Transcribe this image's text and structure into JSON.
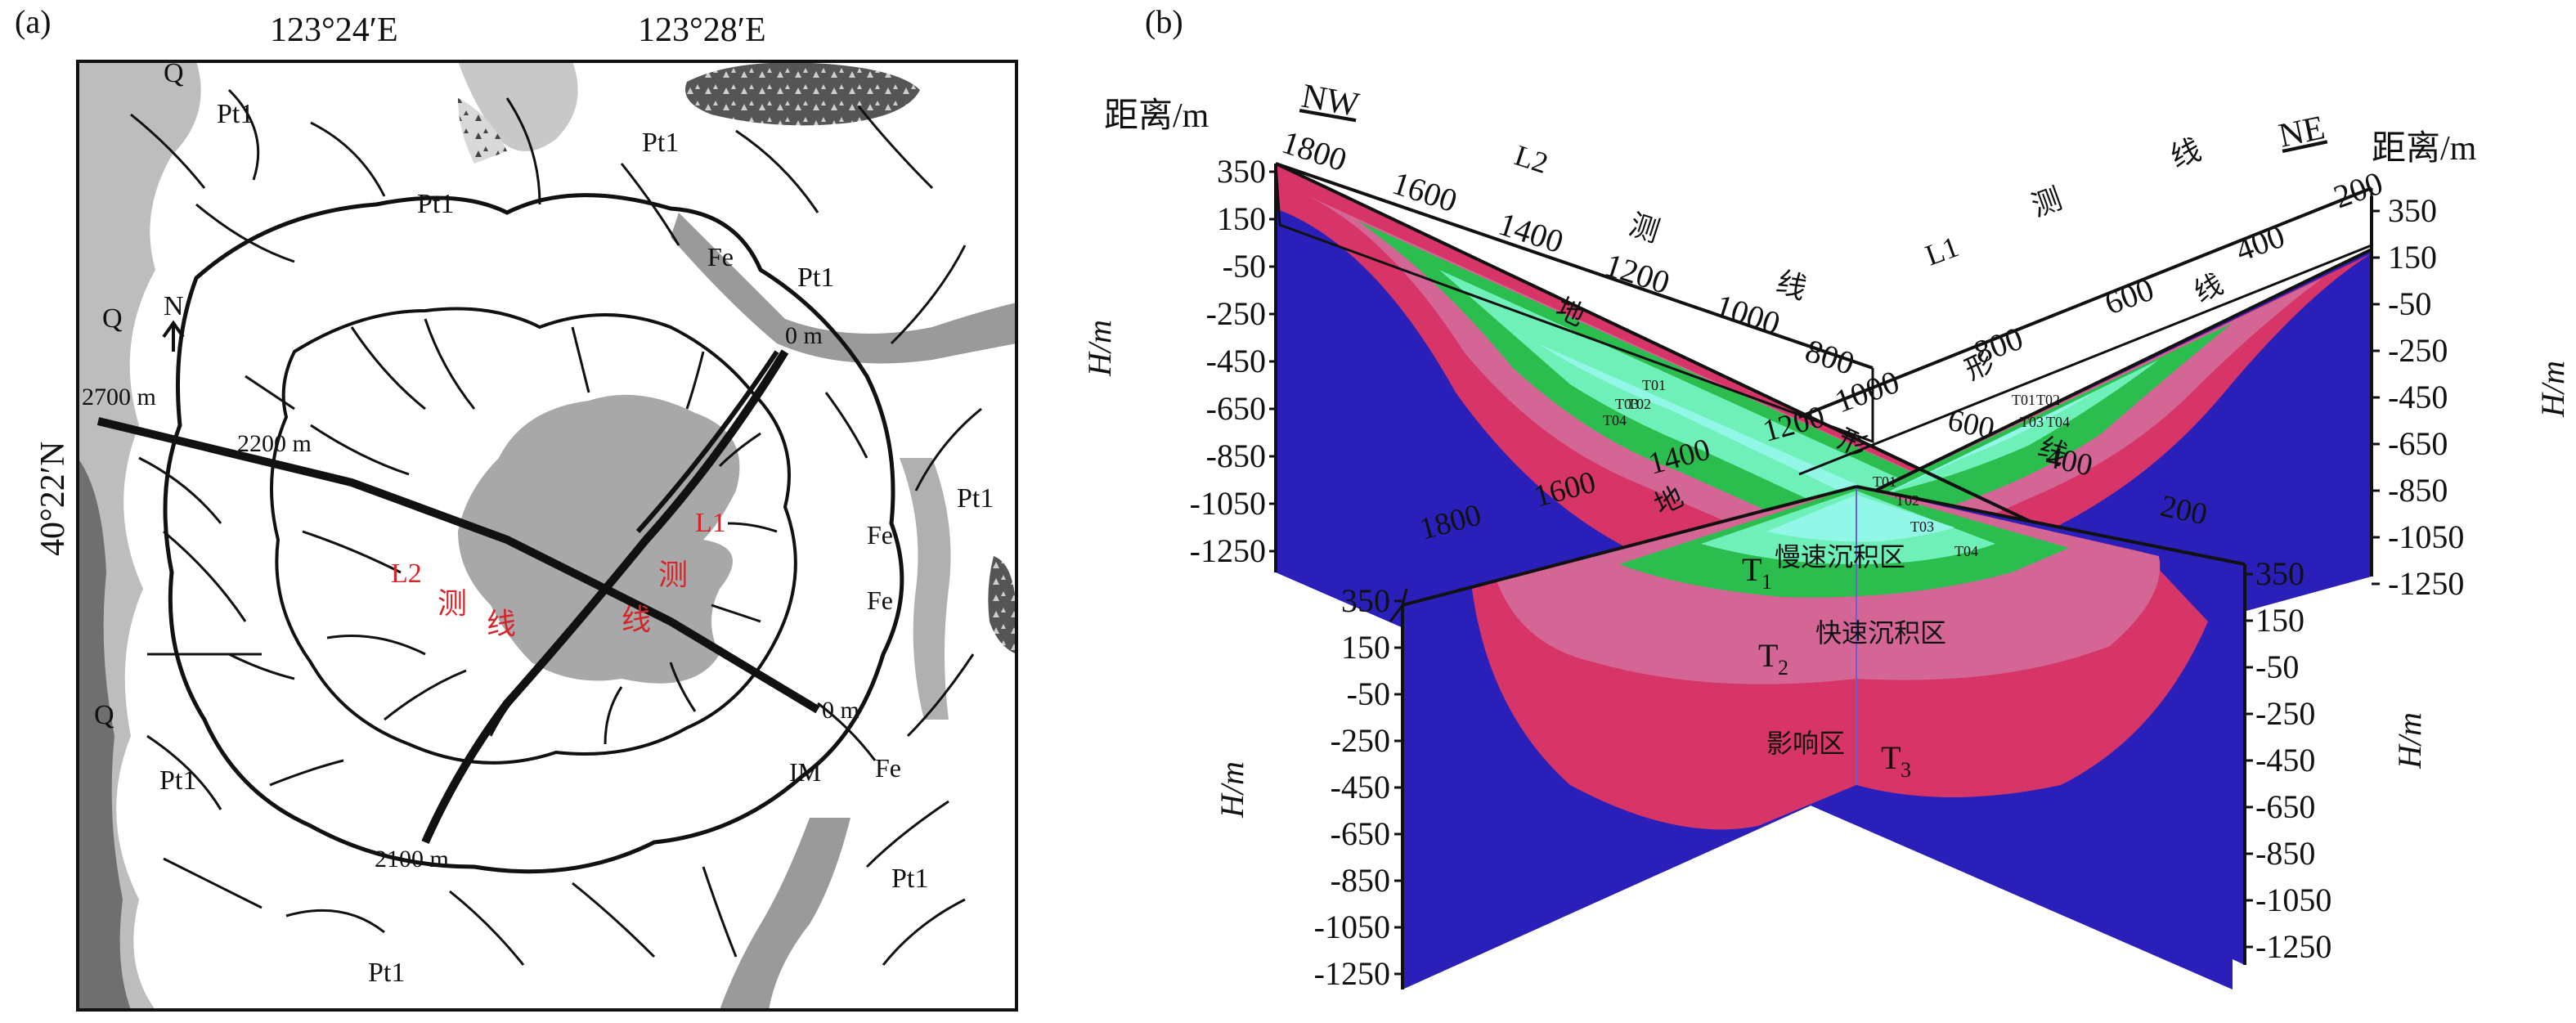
{
  "panel_a": {
    "label": "(a)",
    "lon_left": "123°24′E",
    "lon_right": "123°28′E",
    "lat": "40°22′N",
    "north": "N",
    "units": {
      "q_top": "Q",
      "q_left": "Q",
      "q_bottom_left": "Q",
      "pt1_top_left": "Pt1",
      "pt1_top_mid": "Pt1",
      "pt1_top_right": "Pt1",
      "pt1_upper_right": "Pt1",
      "pt1_right": "Pt1",
      "pt1_left": "Pt1",
      "pt1_bottom_right": "Pt1",
      "pt1_bottom": "Pt1",
      "fe_top": "Fe",
      "fe_right1": "Fe",
      "fe_right2": "Fe",
      "fe_bottom": "Fe",
      "im": "IM"
    },
    "distances": {
      "l1_start": "0 m",
      "l2_start": "2700 m",
      "l2_mid": "2200 m",
      "l2_end": "0 m",
      "l1_end": "2100 m"
    },
    "survey_lines": {
      "l1_name": "L1",
      "l1_char1": "测",
      "l1_char2": "线",
      "l2_name": "L2",
      "l2_char1": "测",
      "l2_char2": "线"
    }
  },
  "panel_b": {
    "label": "(b)",
    "distance_title_left": "距离/m",
    "distance_title_right": "距离/m",
    "dir_nw": "NW",
    "dir_ne": "NE",
    "h_unit": "H/m",
    "l2_top_ticks": [
      "1800",
      "1600",
      "1400",
      "1200",
      "1000",
      "800"
    ],
    "l1_top_ticks": [
      "1000",
      "800",
      "600",
      "400",
      "200"
    ],
    "l2_top_name": "L2",
    "l1_top_name": "L1",
    "ce_char": "测",
    "xian_char": "线",
    "di_char": "地",
    "xing_char": "形",
    "l2_lower_ticks": [
      "1800",
      "1600",
      "1400",
      "1200"
    ],
    "l1_lower_ticks": [
      "600",
      "400",
      "200"
    ],
    "depth_ticks": [
      "350",
      "150",
      "-50",
      "-250",
      "-450",
      "-650",
      "-850",
      "-1050",
      "-1250"
    ],
    "zones": {
      "t1": "T",
      "t1_sub": "1",
      "t2": "T",
      "t2_sub": "2",
      "t3": "T",
      "t3_sub": "3",
      "slow": "慢速沉积区",
      "fast": "快速沉积区",
      "influence": "影响区",
      "t01": "T01",
      "t02": "T02",
      "t03": "T03",
      "t04": "T04"
    }
  },
  "colors": {
    "bedrock": "#2a1fb8",
    "fast_zone": "#d73468",
    "slow_zone_pink": "#d46696",
    "green": "#2bbd4e",
    "green_light": "#6ef0b8",
    "cyan": "#93f7e8",
    "map_gray": "#bdbdbd",
    "map_dark": "#6f6f6f",
    "survey_red": "#d6252a"
  }
}
